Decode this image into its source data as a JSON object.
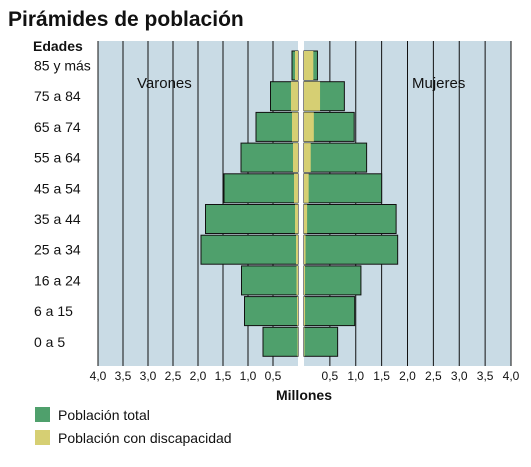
{
  "colors": {
    "panel_background": "#c9dbe5",
    "grid_line": "#111111",
    "total": "#4fa06c",
    "disability": "#d6cf73",
    "bar_stroke": "#111111"
  },
  "chart_data": {
    "type": "bar",
    "orientation": "horizontal",
    "layout": "population-pyramid",
    "title": "Pirámides de población",
    "ylabel": "Edades",
    "xlabel": "Millones",
    "left_side_label": "Varones",
    "right_side_label": "Mujeres",
    "categories": [
      "85 y más",
      "75 a 84",
      "65 a 74",
      "55 a 64",
      "45 a 54",
      "35 a 44",
      "25 a 34",
      "16 a 24",
      "6 a 15",
      "0 a 5"
    ],
    "xlim": [
      0,
      4.0
    ],
    "left_tick_labels": [
      "4,0",
      "3,5",
      "3,0",
      "2,5",
      "2,0",
      "1,5",
      "1,0",
      "0,5"
    ],
    "right_tick_labels": [
      "0,5",
      "1,0",
      "1,5",
      "2,0",
      "2,5",
      "3,0",
      "3,5",
      "4,0"
    ],
    "grid": true,
    "legend_position": "bottom-left",
    "legend": [
      "Población total",
      "Población con discapacidad"
    ],
    "series": [
      {
        "name": "Población total",
        "side": "Varones",
        "values": [
          0.12,
          0.55,
          0.84,
          1.14,
          1.48,
          1.85,
          1.94,
          1.13,
          1.07,
          0.7
        ]
      },
      {
        "name": "Población con discapacidad",
        "side": "Varones",
        "values": [
          0.06,
          0.14,
          0.12,
          0.1,
          0.08,
          0.06,
          0.04,
          0.03,
          0.02,
          0.01
        ]
      },
      {
        "name": "Población total",
        "side": "Mujeres",
        "values": [
          0.26,
          0.78,
          0.97,
          1.21,
          1.5,
          1.78,
          1.81,
          1.1,
          0.98,
          0.65
        ]
      },
      {
        "name": "Población con discapacidad",
        "side": "Mujeres",
        "values": [
          0.18,
          0.31,
          0.19,
          0.13,
          0.09,
          0.06,
          0.03,
          0.02,
          0.02,
          0.01
        ]
      }
    ]
  }
}
